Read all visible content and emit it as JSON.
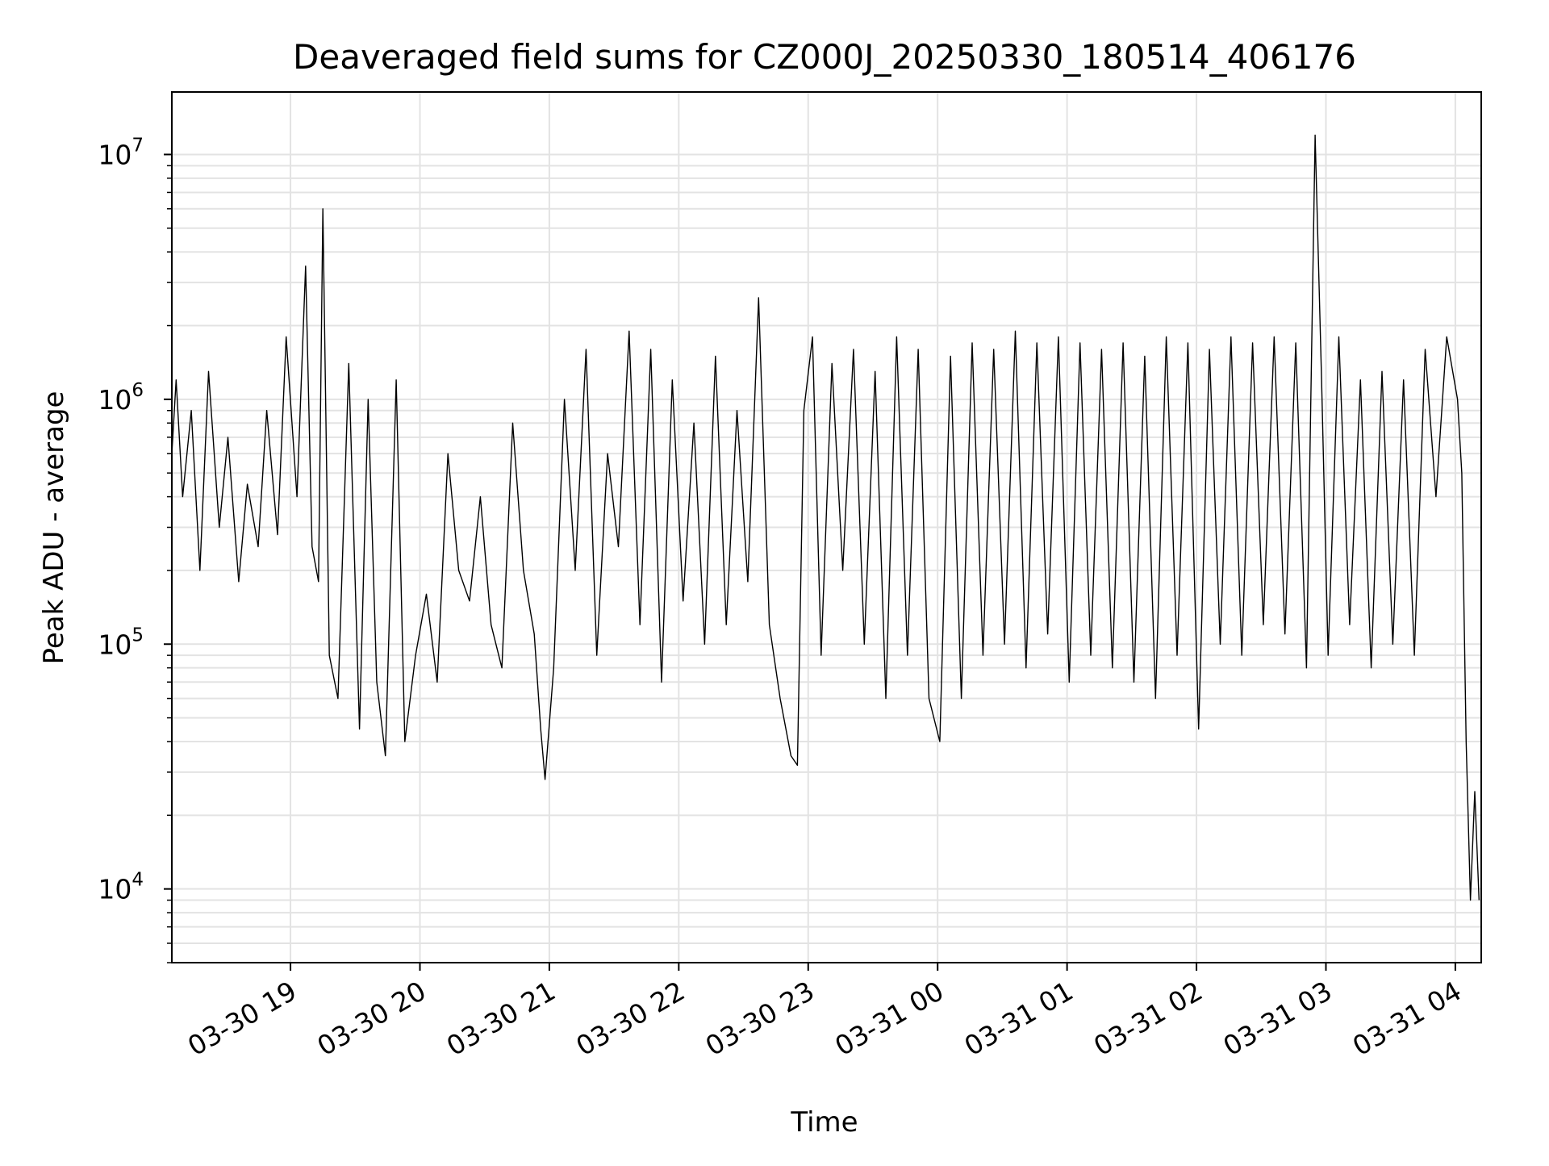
{
  "chart_data": {
    "type": "line",
    "title": "Deaveraged field sums for CZ000J_20250330_180514_406176",
    "xlabel": "Time",
    "ylabel": "Peak ADU - average",
    "yscale": "log",
    "ylim": [
      5000,
      18000000
    ],
    "xlim": [
      "2025-03-30 18:05",
      "2025-03-31 04:12"
    ],
    "grid": true,
    "line_color": "#000000",
    "grid_color": "#e3e3e3",
    "x_ticks": [
      {
        "value": "2025-03-30 19:00",
        "label": "03-30 19"
      },
      {
        "value": "2025-03-30 20:00",
        "label": "03-30 20"
      },
      {
        "value": "2025-03-30 21:00",
        "label": "03-30 21"
      },
      {
        "value": "2025-03-30 22:00",
        "label": "03-30 22"
      },
      {
        "value": "2025-03-30 23:00",
        "label": "03-30 23"
      },
      {
        "value": "2025-03-31 00:00",
        "label": "03-31 00"
      },
      {
        "value": "2025-03-31 01:00",
        "label": "03-31 01"
      },
      {
        "value": "2025-03-31 02:00",
        "label": "03-31 02"
      },
      {
        "value": "2025-03-31 03:00",
        "label": "03-31 03"
      },
      {
        "value": "2025-03-31 04:00",
        "label": "03-31 04"
      }
    ],
    "y_ticks": [
      {
        "value": 10000,
        "base": "10",
        "exp": "4"
      },
      {
        "value": 100000,
        "base": "10",
        "exp": "5"
      },
      {
        "value": 1000000,
        "base": "10",
        "exp": "6"
      },
      {
        "value": 10000000,
        "base": "10",
        "exp": "7"
      }
    ],
    "series": [
      {
        "x": [
          "2025-03-30 18:05",
          "2025-03-30 18:07",
          "2025-03-30 18:10",
          "2025-03-30 18:14",
          "2025-03-30 18:18",
          "2025-03-30 18:22",
          "2025-03-30 18:27",
          "2025-03-30 18:31",
          "2025-03-30 18:36",
          "2025-03-30 18:40",
          "2025-03-30 18:45",
          "2025-03-30 18:49",
          "2025-03-30 18:54",
          "2025-03-30 18:58",
          "2025-03-30 19:03",
          "2025-03-30 19:07",
          "2025-03-30 19:10",
          "2025-03-30 19:13",
          "2025-03-30 19:15",
          "2025-03-30 19:18",
          "2025-03-30 19:22",
          "2025-03-30 19:27",
          "2025-03-30 19:32",
          "2025-03-30 19:36",
          "2025-03-30 19:40",
          "2025-03-30 19:44",
          "2025-03-30 19:49",
          "2025-03-30 19:53",
          "2025-03-30 19:58",
          "2025-03-30 20:03",
          "2025-03-30 20:08",
          "2025-03-30 20:13",
          "2025-03-30 20:18",
          "2025-03-30 20:23",
          "2025-03-30 20:28",
          "2025-03-30 20:33",
          "2025-03-30 20:38",
          "2025-03-30 20:43",
          "2025-03-30 20:48",
          "2025-03-30 20:53",
          "2025-03-30 20:56",
          "2025-03-30 20:58",
          "2025-03-30 21:02",
          "2025-03-30 21:07",
          "2025-03-30 21:12",
          "2025-03-30 21:17",
          "2025-03-30 21:22",
          "2025-03-30 21:27",
          "2025-03-30 21:32",
          "2025-03-30 21:37",
          "2025-03-30 21:42",
          "2025-03-30 21:47",
          "2025-03-30 21:52",
          "2025-03-30 21:57",
          "2025-03-30 22:02",
          "2025-03-30 22:07",
          "2025-03-30 22:12",
          "2025-03-30 22:17",
          "2025-03-30 22:22",
          "2025-03-30 22:27",
          "2025-03-30 22:32",
          "2025-03-30 22:37",
          "2025-03-30 22:42",
          "2025-03-30 22:47",
          "2025-03-30 22:52",
          "2025-03-30 22:55",
          "2025-03-30 22:58",
          "2025-03-30 23:02",
          "2025-03-30 23:06",
          "2025-03-30 23:11",
          "2025-03-30 23:16",
          "2025-03-30 23:21",
          "2025-03-30 23:26",
          "2025-03-30 23:31",
          "2025-03-30 23:36",
          "2025-03-30 23:41",
          "2025-03-30 23:46",
          "2025-03-30 23:51",
          "2025-03-30 23:56",
          "2025-03-31 00:01",
          "2025-03-31 00:06",
          "2025-03-31 00:11",
          "2025-03-31 00:16",
          "2025-03-31 00:21",
          "2025-03-31 00:26",
          "2025-03-31 00:31",
          "2025-03-31 00:36",
          "2025-03-31 00:41",
          "2025-03-31 00:46",
          "2025-03-31 00:51",
          "2025-03-31 00:56",
          "2025-03-31 01:01",
          "2025-03-31 01:06",
          "2025-03-31 01:11",
          "2025-03-31 01:16",
          "2025-03-31 01:21",
          "2025-03-31 01:26",
          "2025-03-31 01:31",
          "2025-03-31 01:36",
          "2025-03-31 01:41",
          "2025-03-31 01:46",
          "2025-03-31 01:51",
          "2025-03-31 01:56",
          "2025-03-31 02:01",
          "2025-03-31 02:06",
          "2025-03-31 02:11",
          "2025-03-31 02:16",
          "2025-03-31 02:21",
          "2025-03-31 02:26",
          "2025-03-31 02:31",
          "2025-03-31 02:36",
          "2025-03-31 02:41",
          "2025-03-31 02:46",
          "2025-03-31 02:51",
          "2025-03-31 02:55",
          "2025-03-31 02:58",
          "2025-03-31 03:01",
          "2025-03-31 03:06",
          "2025-03-31 03:11",
          "2025-03-31 03:16",
          "2025-03-31 03:21",
          "2025-03-31 03:26",
          "2025-03-31 03:31",
          "2025-03-31 03:36",
          "2025-03-31 03:41",
          "2025-03-31 03:46",
          "2025-03-31 03:51",
          "2025-03-31 03:56",
          "2025-03-31 04:01",
          "2025-03-31 04:03",
          "2025-03-31 04:05",
          "2025-03-31 04:07",
          "2025-03-31 04:09",
          "2025-03-31 04:11"
        ],
        "y": [
          600000,
          1200000,
          400000,
          900000,
          200000,
          1300000,
          300000,
          700000,
          180000,
          450000,
          250000,
          900000,
          280000,
          1800000,
          400000,
          3500000,
          250000,
          180000,
          6000000,
          90000,
          60000,
          1400000,
          45000,
          1000000,
          70000,
          35000,
          1200000,
          40000,
          90000,
          160000,
          70000,
          600000,
          200000,
          150000,
          400000,
          120000,
          80000,
          800000,
          200000,
          110000,
          45000,
          28000,
          80000,
          1000000,
          200000,
          1600000,
          90000,
          600000,
          250000,
          1900000,
          120000,
          1600000,
          70000,
          1200000,
          150000,
          800000,
          100000,
          1500000,
          120000,
          900000,
          180000,
          2600000,
          120000,
          60000,
          35000,
          32000,
          900000,
          1800000,
          90000,
          1400000,
          200000,
          1600000,
          100000,
          1300000,
          60000,
          1800000,
          90000,
          1600000,
          60000,
          40000,
          1500000,
          60000,
          1700000,
          90000,
          1600000,
          100000,
          1900000,
          80000,
          1700000,
          110000,
          1800000,
          70000,
          1700000,
          90000,
          1600000,
          80000,
          1700000,
          70000,
          1500000,
          60000,
          1800000,
          90000,
          1700000,
          45000,
          1600000,
          100000,
          1800000,
          90000,
          1700000,
          120000,
          1800000,
          110000,
          1700000,
          80000,
          12000000,
          1200000,
          90000,
          1800000,
          120000,
          1200000,
          80000,
          1300000,
          100000,
          1200000,
          90000,
          1600000,
          400000,
          1800000,
          1000000,
          500000,
          40000,
          9000,
          25000,
          9000
        ]
      }
    ]
  }
}
